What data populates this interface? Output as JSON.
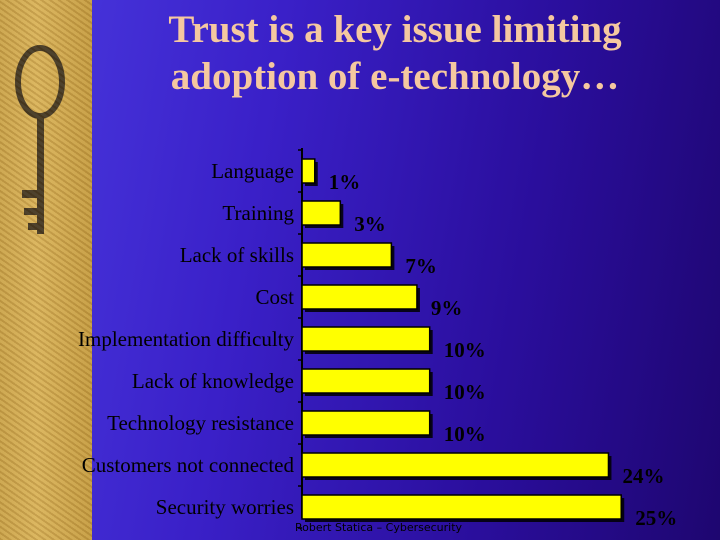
{
  "slide": {
    "title_line1": "Trust is a key issue limiting",
    "title_line2": "adoption of e-technology…",
    "footer": "Robert Statica – Cybersecurity",
    "image_icon": "old-key-icon"
  },
  "colors": {
    "bar_fill": "#ffff00",
    "title": "#f5c8a0"
  },
  "chart_data": {
    "type": "bar",
    "orientation": "horizontal",
    "title": "",
    "xlabel": "",
    "ylabel": "",
    "categories": [
      "Language",
      "Training",
      "Lack of skills",
      "Cost",
      "Implementation difficulty",
      "Lack of knowledge",
      "Technology resistance",
      "Customers not connected",
      "Security worries"
    ],
    "values": [
      1,
      3,
      7,
      9,
      10,
      10,
      10,
      24,
      25
    ],
    "value_labels": [
      "1%",
      "3%",
      "7%",
      "9%",
      "10%",
      "10%",
      "10%",
      "24%",
      "25%"
    ],
    "xlim": [
      0,
      26
    ],
    "grid": false,
    "legend": "none"
  }
}
